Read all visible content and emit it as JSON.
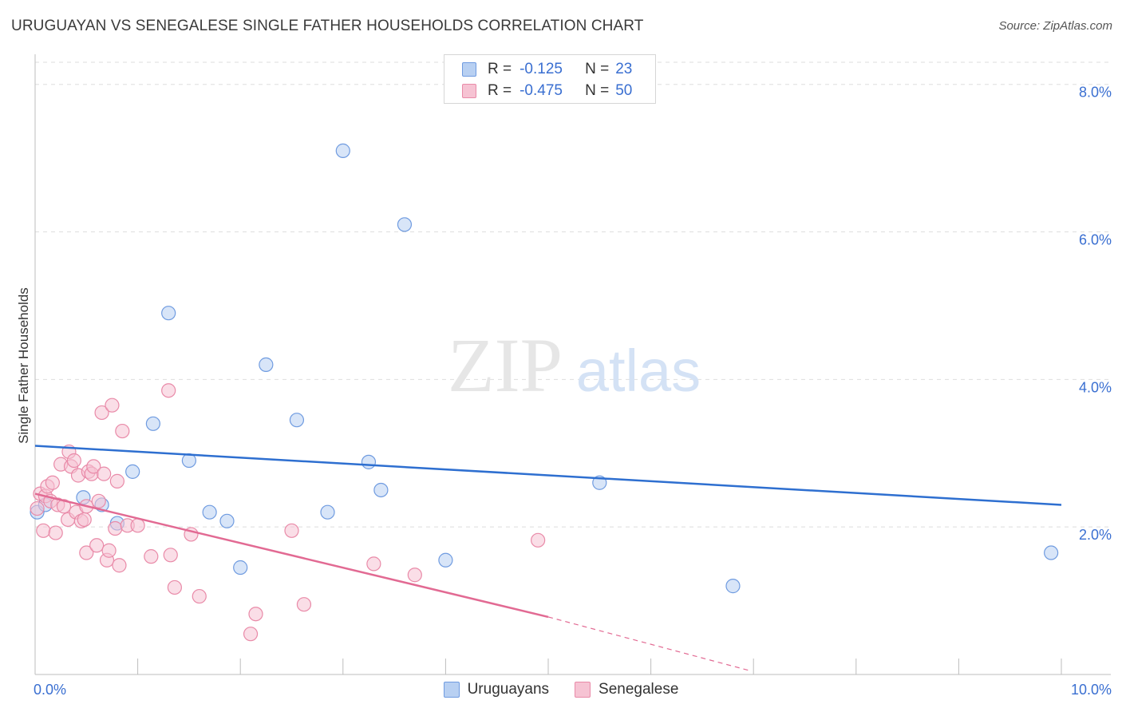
{
  "title": "URUGUAYAN VS SENEGALESE SINGLE FATHER HOUSEHOLDS CORRELATION CHART",
  "source": "Source: ZipAtlas.com",
  "watermark": {
    "zip": "ZIP",
    "atlas": "atlas"
  },
  "legend": {
    "r_label": "R =",
    "n_label": "N =",
    "rows": [
      {
        "r": "-0.125",
        "n": "23"
      },
      {
        "r": "-0.475",
        "n": "50"
      }
    ]
  },
  "colors": {
    "blue_fill": "#b8d0f2",
    "blue_stroke": "#6f9be0",
    "blue_line": "#2e6fd0",
    "pink_fill": "#f6c3d3",
    "pink_stroke": "#e98aa8",
    "pink_line": "#e26a93",
    "grid": "#dedede",
    "axis_text": "#3a6fd1"
  },
  "chart_data": {
    "type": "scatter",
    "title": "URUGUAYAN VS SENEGALESE SINGLE FATHER HOUSEHOLDS CORRELATION CHART",
    "xlabel": "",
    "ylabel": "Single Father Households",
    "xlim": [
      0,
      10
    ],
    "ylim": [
      0,
      8.3
    ],
    "x_tick_labels": [
      {
        "value": 0,
        "label": "0.0%"
      },
      {
        "value": 10,
        "label": "10.0%"
      }
    ],
    "y_tick_labels": [
      {
        "value": 2,
        "label": "2.0%"
      },
      {
        "value": 4,
        "label": "4.0%"
      },
      {
        "value": 6,
        "label": "6.0%"
      },
      {
        "value": 8,
        "label": "8.0%"
      }
    ],
    "series": [
      {
        "name": "Uruguayans",
        "color": "blue",
        "points": [
          [
            0.02,
            2.2
          ],
          [
            0.47,
            2.4
          ],
          [
            0.65,
            2.3
          ],
          [
            0.8,
            2.05
          ],
          [
            0.95,
            2.75
          ],
          [
            1.15,
            3.4
          ],
          [
            1.3,
            4.9
          ],
          [
            1.5,
            2.9
          ],
          [
            1.7,
            2.2
          ],
          [
            1.87,
            2.08
          ],
          [
            2.0,
            1.45
          ],
          [
            2.25,
            4.2
          ],
          [
            2.55,
            3.45
          ],
          [
            2.85,
            2.2
          ],
          [
            3.0,
            7.1
          ],
          [
            3.25,
            2.88
          ],
          [
            3.37,
            2.5
          ],
          [
            3.6,
            6.1
          ],
          [
            4.0,
            1.55
          ],
          [
            5.5,
            2.6
          ],
          [
            6.8,
            1.2
          ],
          [
            9.9,
            1.65
          ],
          [
            0.1,
            2.3
          ]
        ],
        "trend": {
          "x0": 0.0,
          "y0": 3.1,
          "x1": 10.0,
          "y1": 2.3
        }
      },
      {
        "name": "Senegalese",
        "color": "pink",
        "points": [
          [
            0.02,
            2.25
          ],
          [
            0.05,
            2.45
          ],
          [
            0.08,
            1.95
          ],
          [
            0.1,
            2.42
          ],
          [
            0.12,
            2.55
          ],
          [
            0.15,
            2.35
          ],
          [
            0.17,
            2.6
          ],
          [
            0.2,
            1.92
          ],
          [
            0.22,
            2.3
          ],
          [
            0.25,
            2.85
          ],
          [
            0.28,
            2.28
          ],
          [
            0.32,
            2.1
          ],
          [
            0.33,
            3.02
          ],
          [
            0.35,
            2.82
          ],
          [
            0.38,
            2.9
          ],
          [
            0.4,
            2.2
          ],
          [
            0.42,
            2.7
          ],
          [
            0.45,
            2.08
          ],
          [
            0.48,
            2.1
          ],
          [
            0.5,
            1.65
          ],
          [
            0.5,
            2.28
          ],
          [
            0.52,
            2.75
          ],
          [
            0.55,
            2.72
          ],
          [
            0.57,
            2.82
          ],
          [
            0.6,
            1.75
          ],
          [
            0.62,
            2.35
          ],
          [
            0.65,
            3.55
          ],
          [
            0.67,
            2.72
          ],
          [
            0.7,
            1.55
          ],
          [
            0.72,
            1.68
          ],
          [
            0.75,
            3.65
          ],
          [
            0.78,
            1.98
          ],
          [
            0.8,
            2.62
          ],
          [
            0.82,
            1.48
          ],
          [
            0.85,
            3.3
          ],
          [
            0.9,
            2.02
          ],
          [
            1.0,
            2.02
          ],
          [
            1.13,
            1.6
          ],
          [
            1.3,
            3.85
          ],
          [
            1.32,
            1.62
          ],
          [
            1.36,
            1.18
          ],
          [
            1.52,
            1.9
          ],
          [
            1.6,
            1.06
          ],
          [
            2.15,
            0.82
          ],
          [
            2.1,
            0.55
          ],
          [
            2.5,
            1.95
          ],
          [
            2.62,
            0.95
          ],
          [
            3.3,
            1.5
          ],
          [
            3.7,
            1.35
          ],
          [
            4.9,
            1.82
          ]
        ],
        "trend": {
          "x0": 0.0,
          "y0": 2.45,
          "x1": 5.0,
          "y1": 0.78
        },
        "trend_extension": {
          "x0": 5.0,
          "y0": 0.78,
          "x1": 6.97,
          "y1": 0.05
        }
      }
    ]
  },
  "bottom_legend": [
    {
      "label": "Uruguayans",
      "color": "blue"
    },
    {
      "label": "Senegalese",
      "color": "pink"
    }
  ]
}
